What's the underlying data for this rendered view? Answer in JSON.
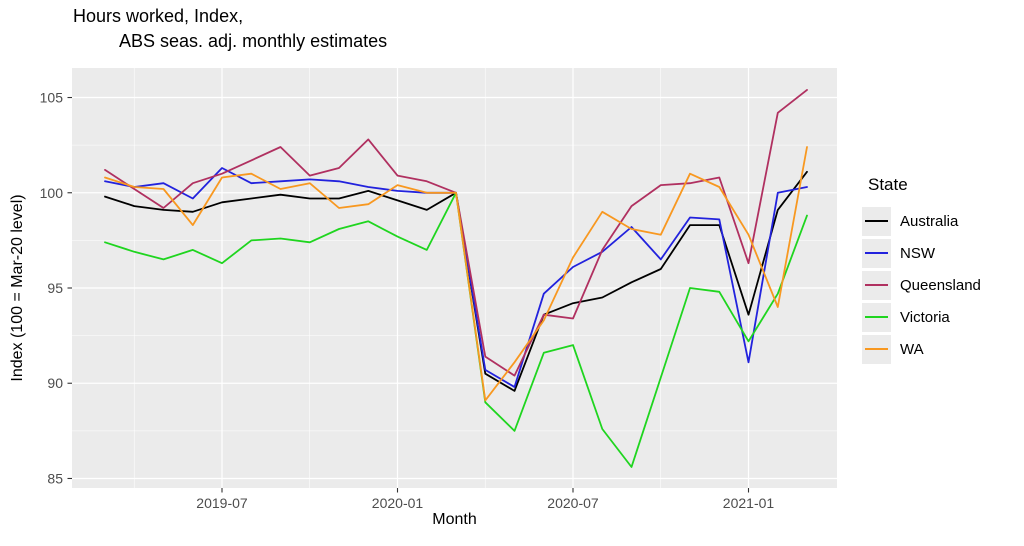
{
  "title": {
    "line1": "Hours worked, Index,",
    "line2": "ABS seas. adj. monthly estimates"
  },
  "axes": {
    "x_label": "Month",
    "y_label": "Index (100 = Mar-20 level)",
    "x_ticks": [
      "2019-07",
      "2020-01",
      "2020-07",
      "2021-01"
    ],
    "y_ticks": [
      85,
      90,
      95,
      100,
      105
    ]
  },
  "legend": {
    "title": "State",
    "items": [
      "Australia",
      "NSW",
      "Queensland",
      "Victoria",
      "WA"
    ]
  },
  "colors": {
    "panel_background": "#ebebeb",
    "gridline": "#ffffff",
    "tick_text": "#4d4d4d",
    "tick_mark": "#333333",
    "australia": "#000000",
    "nsw": "#2222dd",
    "queensland": "#b03060",
    "victoria": "#1fd51f",
    "wa": "#f89820"
  },
  "chart_data": {
    "type": "line",
    "title": "Hours worked, Index, ABS seas. adj. monthly estimates",
    "xlabel": "Month",
    "ylabel": "Index (100 = Mar-20 level)",
    "x": [
      "2019-03",
      "2019-04",
      "2019-05",
      "2019-06",
      "2019-07",
      "2019-08",
      "2019-09",
      "2019-10",
      "2019-11",
      "2019-12",
      "2020-01",
      "2020-02",
      "2020-03",
      "2020-04",
      "2020-05",
      "2020-06",
      "2020-07",
      "2020-08",
      "2020-09",
      "2020-10",
      "2020-11",
      "2020-12",
      "2021-01",
      "2021-02",
      "2021-03"
    ],
    "x_tick_labels": [
      "2019-07",
      "2020-01",
      "2020-07",
      "2021-01"
    ],
    "ylim": [
      84.5,
      106.55
    ],
    "y_major_breaks": [
      85,
      90,
      95,
      100,
      105
    ],
    "grid": "on",
    "legend_position": "right",
    "legend_title": "State",
    "series": [
      {
        "name": "Australia",
        "color": "#000000",
        "values": [
          99.8,
          99.3,
          99.1,
          99.0,
          99.5,
          99.7,
          99.9,
          99.7,
          99.7,
          100.1,
          99.6,
          99.1,
          100.0,
          90.5,
          89.6,
          93.6,
          94.2,
          94.5,
          95.3,
          96.0,
          98.3,
          98.3,
          93.6,
          99.1,
          101.1
        ]
      },
      {
        "name": "NSW",
        "color": "#2222dd",
        "values": [
          100.6,
          100.3,
          100.5,
          99.7,
          101.3,
          100.5,
          100.6,
          100.7,
          100.6,
          100.3,
          100.1,
          100.0,
          100.0,
          90.7,
          89.8,
          94.7,
          96.1,
          96.9,
          98.2,
          96.5,
          98.7,
          98.6,
          91.1,
          100.0,
          100.3
        ]
      },
      {
        "name": "Queensland",
        "color": "#b03060",
        "values": [
          101.2,
          100.2,
          99.2,
          100.5,
          101.0,
          101.7,
          102.4,
          100.9,
          101.3,
          102.8,
          100.9,
          100.6,
          100.0,
          91.4,
          90.4,
          93.6,
          93.4,
          97.0,
          99.3,
          100.4,
          100.5,
          100.8,
          96.3,
          104.2,
          105.4
        ]
      },
      {
        "name": "Victoria",
        "color": "#1fd51f",
        "values": [
          97.4,
          96.9,
          96.5,
          97.0,
          96.3,
          97.5,
          97.6,
          97.4,
          98.1,
          98.5,
          97.7,
          97.0,
          100.0,
          89.0,
          87.5,
          91.6,
          92.0,
          87.6,
          85.6,
          90.3,
          95.0,
          94.8,
          92.2,
          94.7,
          98.8
        ]
      },
      {
        "name": "WA",
        "color": "#f89820",
        "values": [
          100.8,
          100.3,
          100.2,
          98.3,
          100.8,
          101.0,
          100.2,
          100.5,
          99.2,
          99.4,
          100.4,
          100.0,
          100.0,
          89.1,
          91.1,
          93.3,
          96.6,
          99.0,
          98.1,
          97.8,
          101.0,
          100.3,
          97.8,
          94.0,
          102.4
        ]
      }
    ]
  }
}
